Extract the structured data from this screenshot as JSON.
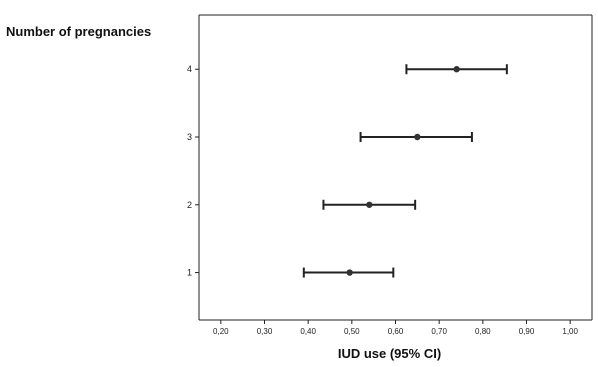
{
  "chart_data": {
    "type": "scatter",
    "title": "",
    "xlabel": "IUD use (95% CI)",
    "ylabel": "Number of pregnancies",
    "xlim": [
      0.15,
      1.05
    ],
    "ylim": [
      0.3,
      4.8
    ],
    "grid": false,
    "legend": "none",
    "x_ticks": [
      {
        "value": 0.2,
        "label": "0,20"
      },
      {
        "value": 0.3,
        "label": "0,30"
      },
      {
        "value": 0.4,
        "label": "0,40"
      },
      {
        "value": 0.5,
        "label": "0,50"
      },
      {
        "value": 0.6,
        "label": "0,60"
      },
      {
        "value": 0.7,
        "label": "0,70"
      },
      {
        "value": 0.8,
        "label": "0,80"
      },
      {
        "value": 0.9,
        "label": "0,90"
      },
      {
        "value": 1.0,
        "label": "1,00"
      }
    ],
    "y_ticks": [
      {
        "value": 1,
        "label": "1"
      },
      {
        "value": 2,
        "label": "2"
      },
      {
        "value": 3,
        "label": "3"
      },
      {
        "value": 4,
        "label": "4"
      }
    ],
    "points": [
      {
        "y": 1,
        "x": 0.495,
        "lower": 0.39,
        "upper": 0.595
      },
      {
        "y": 2,
        "x": 0.54,
        "lower": 0.435,
        "upper": 0.645
      },
      {
        "y": 3,
        "x": 0.65,
        "lower": 0.52,
        "upper": 0.775
      },
      {
        "y": 4,
        "x": 0.74,
        "lower": 0.625,
        "upper": 0.855
      }
    ],
    "colors": {
      "axis": "#222222",
      "marker": "#333333",
      "errorbar": "#222222"
    }
  }
}
